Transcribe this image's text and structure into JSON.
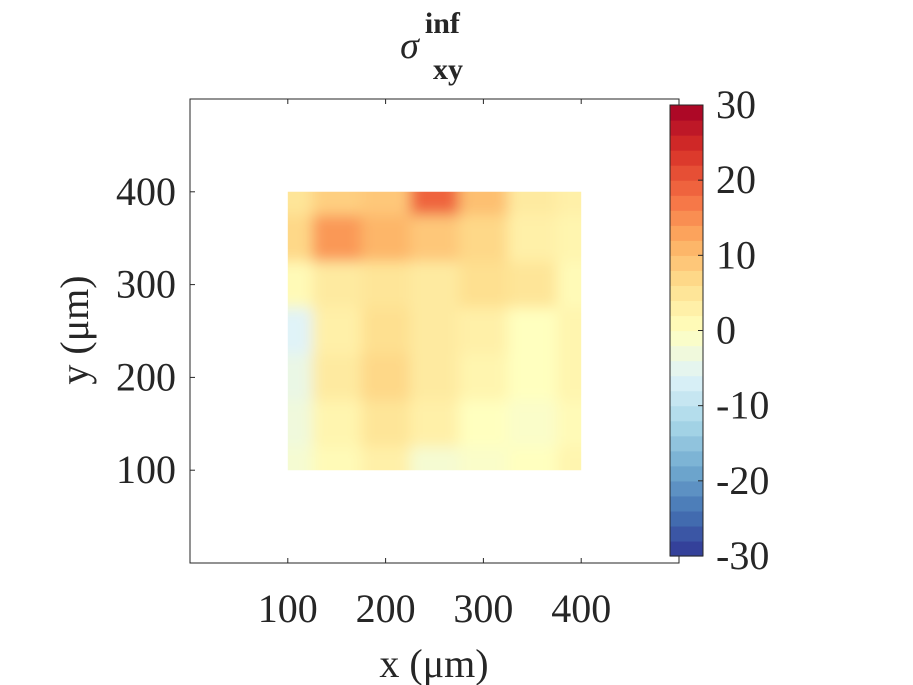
{
  "chart_data": {
    "type": "heatmap",
    "title": {
      "symbol": "σ",
      "superscript": "inf",
      "subscript": "xy"
    },
    "xlabel": "x (μm)",
    "ylabel": "y (μm)",
    "xlim": [
      0,
      500
    ],
    "ylim": [
      0,
      500
    ],
    "xticks": [
      100,
      200,
      300,
      400
    ],
    "yticks": [
      100,
      200,
      300,
      400
    ],
    "data_extent": {
      "x": [
        100,
        400
      ],
      "y": [
        100,
        400
      ]
    },
    "colorbar": {
      "limits": [
        -30,
        30
      ],
      "ticks": [
        30,
        20,
        10,
        0,
        -10,
        -20,
        -30
      ],
      "colormap": [
        "#313695",
        "#4575b4",
        "#74add1",
        "#abd9e9",
        "#e0f3f8",
        "#ffffbf",
        "#fee090",
        "#fdae61",
        "#f46d43",
        "#d73027",
        "#a50026"
      ],
      "levels": 30
    },
    "grid": {
      "x": [
        100,
        150,
        200,
        250,
        300,
        350,
        400
      ],
      "y": [
        400,
        350,
        300,
        250,
        200,
        150,
        100
      ],
      "values": [
        [
          5,
          8,
          9,
          19,
          10,
          4,
          3
        ],
        [
          7,
          14,
          11,
          9,
          7,
          3,
          2
        ],
        [
          1,
          4,
          5,
          4,
          6,
          5,
          1
        ],
        [
          -6,
          3,
          6,
          4,
          3,
          0,
          2
        ],
        [
          -4,
          4,
          7,
          4,
          2,
          0,
          2
        ],
        [
          -3,
          2,
          5,
          3,
          0,
          -1,
          1
        ],
        [
          -2,
          1,
          3,
          -2,
          -1,
          0,
          2
        ]
      ]
    }
  }
}
